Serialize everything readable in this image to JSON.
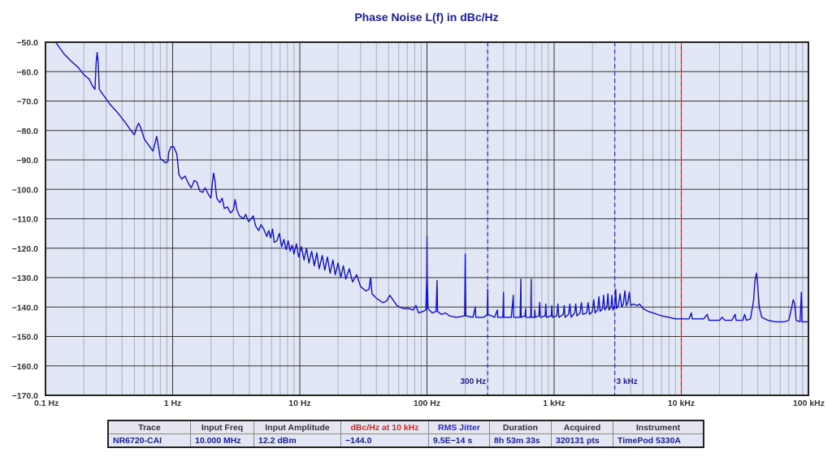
{
  "title": "Phase Noise L(f) in dBc/Hz",
  "colors": {
    "trace": "#1010d0",
    "plot_bg": "#e2e7f6",
    "grid_major": "#333333",
    "grid_minor": "#a8afc0",
    "marker_blue": "#2a2ab0",
    "marker_red": "#d04040",
    "title": "#1a1aa8"
  },
  "chart_data": {
    "type": "line",
    "title": "Phase Noise L(f) in dBc/Hz",
    "xlabel": "",
    "ylabel": "",
    "xscale": "log",
    "xlim": [
      0.1,
      100000
    ],
    "ylim": [
      -170,
      -50
    ],
    "x_ticks": [
      "0.1 Hz",
      "1 Hz",
      "10 Hz",
      "100 Hz",
      "1 kHz",
      "10 kHz",
      "100 kHz"
    ],
    "y_ticks": [
      "-50.0",
      "-60.0",
      "-70.0",
      "-80.0",
      "-90.0",
      "-100.0",
      "-110.0",
      "-120.0",
      "-130.0",
      "-140.0",
      "-150.0",
      "-160.0",
      "-170.0"
    ],
    "grid": true,
    "markers": [
      {
        "x": 300,
        "label": "300 Hz",
        "color": "blue",
        "style": "dashed"
      },
      {
        "x": 3000,
        "label": "3 kHz",
        "color": "blue",
        "style": "dashed"
      },
      {
        "x": 10000,
        "label": "",
        "color": "red",
        "style": "dashed"
      }
    ],
    "series": [
      {
        "name": "NR6720-CAI",
        "points": [
          [
            0.12,
            -50
          ],
          [
            0.14,
            -54
          ],
          [
            0.16,
            -56.5
          ],
          [
            0.18,
            -58.5
          ],
          [
            0.2,
            -61
          ],
          [
            0.22,
            -62.5
          ],
          [
            0.235,
            -65
          ],
          [
            0.245,
            -66
          ],
          [
            0.25,
            -57
          ],
          [
            0.255,
            -53.5
          ],
          [
            0.26,
            -57
          ],
          [
            0.265,
            -66
          ],
          [
            0.28,
            -67.5
          ],
          [
            0.32,
            -71
          ],
          [
            0.37,
            -74
          ],
          [
            0.42,
            -77
          ],
          [
            0.47,
            -80
          ],
          [
            0.5,
            -81.5
          ],
          [
            0.52,
            -79
          ],
          [
            0.54,
            -77.5
          ],
          [
            0.56,
            -79
          ],
          [
            0.6,
            -83
          ],
          [
            0.66,
            -85.5
          ],
          [
            0.7,
            -87
          ],
          [
            0.73,
            -84
          ],
          [
            0.75,
            -82
          ],
          [
            0.77,
            -85
          ],
          [
            0.8,
            -89.5
          ],
          [
            0.88,
            -91
          ],
          [
            0.92,
            -90.5
          ],
          [
            0.93,
            -87.5
          ],
          [
            0.97,
            -85.5
          ],
          [
            1.02,
            -85.5
          ],
          [
            1.08,
            -88
          ],
          [
            1.12,
            -95
          ],
          [
            1.18,
            -96.5
          ],
          [
            1.25,
            -95.5
          ],
          [
            1.33,
            -98
          ],
          [
            1.4,
            -99.5
          ],
          [
            1.48,
            -97
          ],
          [
            1.55,
            -97.5
          ],
          [
            1.63,
            -100.5
          ],
          [
            1.72,
            -101
          ],
          [
            1.8,
            -99.5
          ],
          [
            1.9,
            -101.5
          ],
          [
            2.0,
            -103
          ],
          [
            2.05,
            -98
          ],
          [
            2.1,
            -94.5
          ],
          [
            2.15,
            -97
          ],
          [
            2.22,
            -103
          ],
          [
            2.35,
            -104.5
          ],
          [
            2.45,
            -103
          ],
          [
            2.55,
            -106.5
          ],
          [
            2.7,
            -106
          ],
          [
            2.85,
            -108
          ],
          [
            3.0,
            -107
          ],
          [
            3.1,
            -103.5
          ],
          [
            3.2,
            -107
          ],
          [
            3.35,
            -109
          ],
          [
            3.6,
            -110
          ],
          [
            3.75,
            -108.5
          ],
          [
            3.95,
            -111
          ],
          [
            4.15,
            -110
          ],
          [
            4.3,
            -109
          ],
          [
            4.5,
            -112.5
          ],
          [
            4.75,
            -114
          ],
          [
            4.95,
            -112
          ],
          [
            5.2,
            -113.5
          ],
          [
            5.5,
            -116
          ],
          [
            5.7,
            -114
          ],
          [
            5.9,
            -116.5
          ],
          [
            6.1,
            -113.5
          ],
          [
            6.3,
            -118
          ],
          [
            6.6,
            -117.5
          ],
          [
            6.9,
            -115
          ],
          [
            7.2,
            -119.5
          ],
          [
            7.5,
            -117
          ],
          [
            7.8,
            -120.5
          ],
          [
            8.1,
            -117.5
          ],
          [
            8.4,
            -121
          ],
          [
            8.7,
            -119
          ],
          [
            9.0,
            -122
          ],
          [
            9.4,
            -118.5
          ],
          [
            9.8,
            -123
          ],
          [
            10.3,
            -119.5
          ],
          [
            10.8,
            -124
          ],
          [
            11.3,
            -120
          ],
          [
            11.8,
            -125
          ],
          [
            12.4,
            -121
          ],
          [
            13,
            -126
          ],
          [
            13.6,
            -121.5
          ],
          [
            14.2,
            -127
          ],
          [
            15,
            -122.5
          ],
          [
            15.7,
            -127.5
          ],
          [
            16.5,
            -123
          ],
          [
            17.3,
            -128.5
          ],
          [
            18.2,
            -124
          ],
          [
            19,
            -129
          ],
          [
            20,
            -125
          ],
          [
            21,
            -130
          ],
          [
            22,
            -126
          ],
          [
            23,
            -130.5
          ],
          [
            24.5,
            -127
          ],
          [
            26,
            -131.5
          ],
          [
            28,
            -129
          ],
          [
            30,
            -133
          ],
          [
            33,
            -134.5
          ],
          [
            35,
            -134
          ],
          [
            36,
            -130
          ],
          [
            37,
            -135.5
          ],
          [
            40,
            -137
          ],
          [
            45,
            -138.5
          ],
          [
            48,
            -138
          ],
          [
            51,
            -136
          ],
          [
            54,
            -137.5
          ],
          [
            58,
            -139.5
          ],
          [
            65,
            -140.5
          ],
          [
            72,
            -140.5
          ],
          [
            78,
            -141
          ],
          [
            82,
            -139.5
          ],
          [
            86,
            -142
          ],
          [
            93,
            -141.5
          ],
          [
            98,
            -141
          ],
          [
            99.5,
            -130
          ],
          [
            100,
            -116
          ],
          [
            100.5,
            -130
          ],
          [
            102,
            -140.5
          ],
          [
            110,
            -142
          ],
          [
            118,
            -141.5
          ],
          [
            120,
            -131
          ],
          [
            121,
            -141.5
          ],
          [
            130,
            -142.5
          ],
          [
            140,
            -142
          ],
          [
            150,
            -143
          ],
          [
            170,
            -143.5
          ],
          [
            198,
            -143
          ],
          [
            200,
            -122
          ],
          [
            202,
            -143
          ],
          [
            230,
            -143.5
          ],
          [
            240,
            -140
          ],
          [
            242,
            -143.5
          ],
          [
            280,
            -143.5
          ],
          [
            298,
            -142.5
          ],
          [
            300,
            -134
          ],
          [
            302,
            -142.5
          ],
          [
            340,
            -143.5
          ],
          [
            358,
            -141
          ],
          [
            360,
            -143.5
          ],
          [
            395,
            -143.5
          ],
          [
            400,
            -135
          ],
          [
            402,
            -143.5
          ],
          [
            460,
            -143.5
          ],
          [
            478,
            -136
          ],
          [
            480,
            -143.5
          ],
          [
            540,
            -143.5
          ],
          [
            548,
            -130.5
          ],
          [
            550,
            -143.5
          ],
          [
            590,
            -143
          ],
          [
            598,
            -140.5
          ],
          [
            600,
            -143.5
          ],
          [
            655,
            -143.5
          ],
          [
            660,
            -130.5
          ],
          [
            662,
            -143.5
          ],
          [
            700,
            -143.5
          ],
          [
            705,
            -141
          ],
          [
            710,
            -143.5
          ],
          [
            760,
            -143
          ],
          [
            770,
            -138.5
          ],
          [
            780,
            -143.5
          ],
          [
            850,
            -143
          ],
          [
            860,
            -139
          ],
          [
            870,
            -143.5
          ],
          [
            950,
            -143
          ],
          [
            960,
            -139.5
          ],
          [
            970,
            -143.5
          ],
          [
            1050,
            -143
          ],
          [
            1070,
            -139
          ],
          [
            1090,
            -143.5
          ],
          [
            1180,
            -142.5
          ],
          [
            1200,
            -139.5
          ],
          [
            1220,
            -143.5
          ],
          [
            1300,
            -142.5
          ],
          [
            1330,
            -139
          ],
          [
            1360,
            -143.5
          ],
          [
            1450,
            -142
          ],
          [
            1480,
            -139
          ],
          [
            1510,
            -143
          ],
          [
            1600,
            -142
          ],
          [
            1640,
            -138.5
          ],
          [
            1680,
            -142.5
          ],
          [
            1800,
            -142
          ],
          [
            1850,
            -138.5
          ],
          [
            1900,
            -142.5
          ],
          [
            2000,
            -141.5
          ],
          [
            2050,
            -137.5
          ],
          [
            2100,
            -142
          ],
          [
            2200,
            -141
          ],
          [
            2250,
            -136.5
          ],
          [
            2300,
            -141.5
          ],
          [
            2400,
            -140.5
          ],
          [
            2450,
            -136
          ],
          [
            2500,
            -141
          ],
          [
            2600,
            -140
          ],
          [
            2650,
            -135.5
          ],
          [
            2700,
            -141
          ],
          [
            2800,
            -140
          ],
          [
            2850,
            -136
          ],
          [
            2900,
            -141
          ],
          [
            3000,
            -139.5
          ],
          [
            3050,
            -134
          ],
          [
            3100,
            -140.5
          ],
          [
            3200,
            -139.5
          ],
          [
            3300,
            -135.5
          ],
          [
            3400,
            -140
          ],
          [
            3500,
            -139
          ],
          [
            3600,
            -134.5
          ],
          [
            3700,
            -139.5
          ],
          [
            3800,
            -138.5
          ],
          [
            3900,
            -135
          ],
          [
            4000,
            -139.5
          ],
          [
            4200,
            -139
          ],
          [
            4500,
            -139.5
          ],
          [
            4700,
            -139
          ],
          [
            5000,
            -140.5
          ],
          [
            5500,
            -141.5
          ],
          [
            6000,
            -142
          ],
          [
            7000,
            -143
          ],
          [
            8000,
            -143.5
          ],
          [
            9000,
            -144
          ],
          [
            10000,
            -144
          ],
          [
            11500,
            -144
          ],
          [
            12000,
            -142
          ],
          [
            12200,
            -144
          ],
          [
            15000,
            -144
          ],
          [
            16000,
            -142.5
          ],
          [
            16500,
            -144.5
          ],
          [
            20000,
            -144.5
          ],
          [
            21000,
            -143.5
          ],
          [
            22000,
            -144.5
          ],
          [
            25000,
            -144.5
          ],
          [
            26500,
            -142.5
          ],
          [
            27000,
            -144.5
          ],
          [
            30500,
            -144.5
          ],
          [
            31500,
            -142.5
          ],
          [
            32500,
            -144.5
          ],
          [
            35000,
            -144
          ],
          [
            37000,
            -138
          ],
          [
            38000,
            -131
          ],
          [
            39000,
            -128.5
          ],
          [
            40000,
            -133
          ],
          [
            41000,
            -140
          ],
          [
            43000,
            -143.5
          ],
          [
            48000,
            -144.5
          ],
          [
            55000,
            -145
          ],
          [
            65000,
            -145
          ],
          [
            70000,
            -144.5
          ],
          [
            74000,
            -140
          ],
          [
            76000,
            -137.5
          ],
          [
            78000,
            -139
          ],
          [
            80000,
            -144.5
          ],
          [
            86000,
            -145
          ],
          [
            88000,
            -135
          ],
          [
            89000,
            -145
          ],
          [
            100000,
            -145
          ]
        ]
      }
    ]
  },
  "info_table": {
    "headers": [
      "Trace",
      "Input Freq",
      "Input Amplitude",
      "dBc/Hz at 10 kHz",
      "RMS Jitter",
      "Duration",
      "Acquired",
      "Instrument"
    ],
    "values": [
      "NR6720-CAI",
      "10.000 MHz",
      "12.2 dBm",
      "−144.0",
      "9.5E−14 s",
      "8h 53m 33s",
      "320131 pts",
      "TimePod 5330A"
    ]
  }
}
